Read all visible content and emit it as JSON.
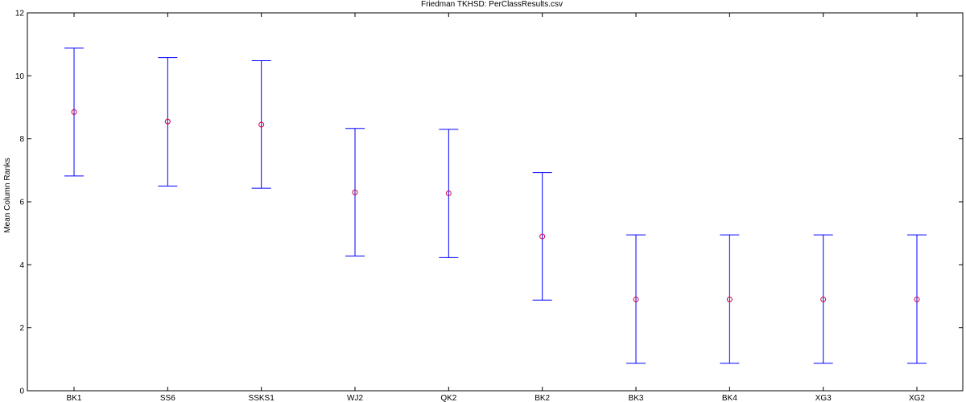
{
  "chart_data": {
    "type": "errorbar",
    "title": "Friedman TKHSD: PerClassResults.csv",
    "xlabel": "",
    "ylabel": "Mean Column Ranks",
    "ylim": [
      0,
      12
    ],
    "yticks": [
      0,
      2,
      4,
      6,
      8,
      10,
      12
    ],
    "categories": [
      "BK1",
      "SS6",
      "SSKS1",
      "WJ2",
      "QK2",
      "BK2",
      "BK3",
      "BK4",
      "XG3",
      "XG2"
    ],
    "means": [
      8.85,
      8.55,
      8.45,
      6.3,
      6.27,
      4.9,
      2.9,
      2.9,
      2.9,
      2.9
    ],
    "lower": [
      6.82,
      6.5,
      6.43,
      4.28,
      4.23,
      2.88,
      0.87,
      0.87,
      0.87,
      0.87
    ],
    "upper": [
      10.88,
      10.58,
      10.48,
      8.33,
      8.3,
      6.93,
      4.95,
      4.95,
      4.95,
      4.95
    ],
    "grid": false,
    "colors": {
      "errorbar": "#0000ff",
      "marker": "#d4003f"
    }
  }
}
